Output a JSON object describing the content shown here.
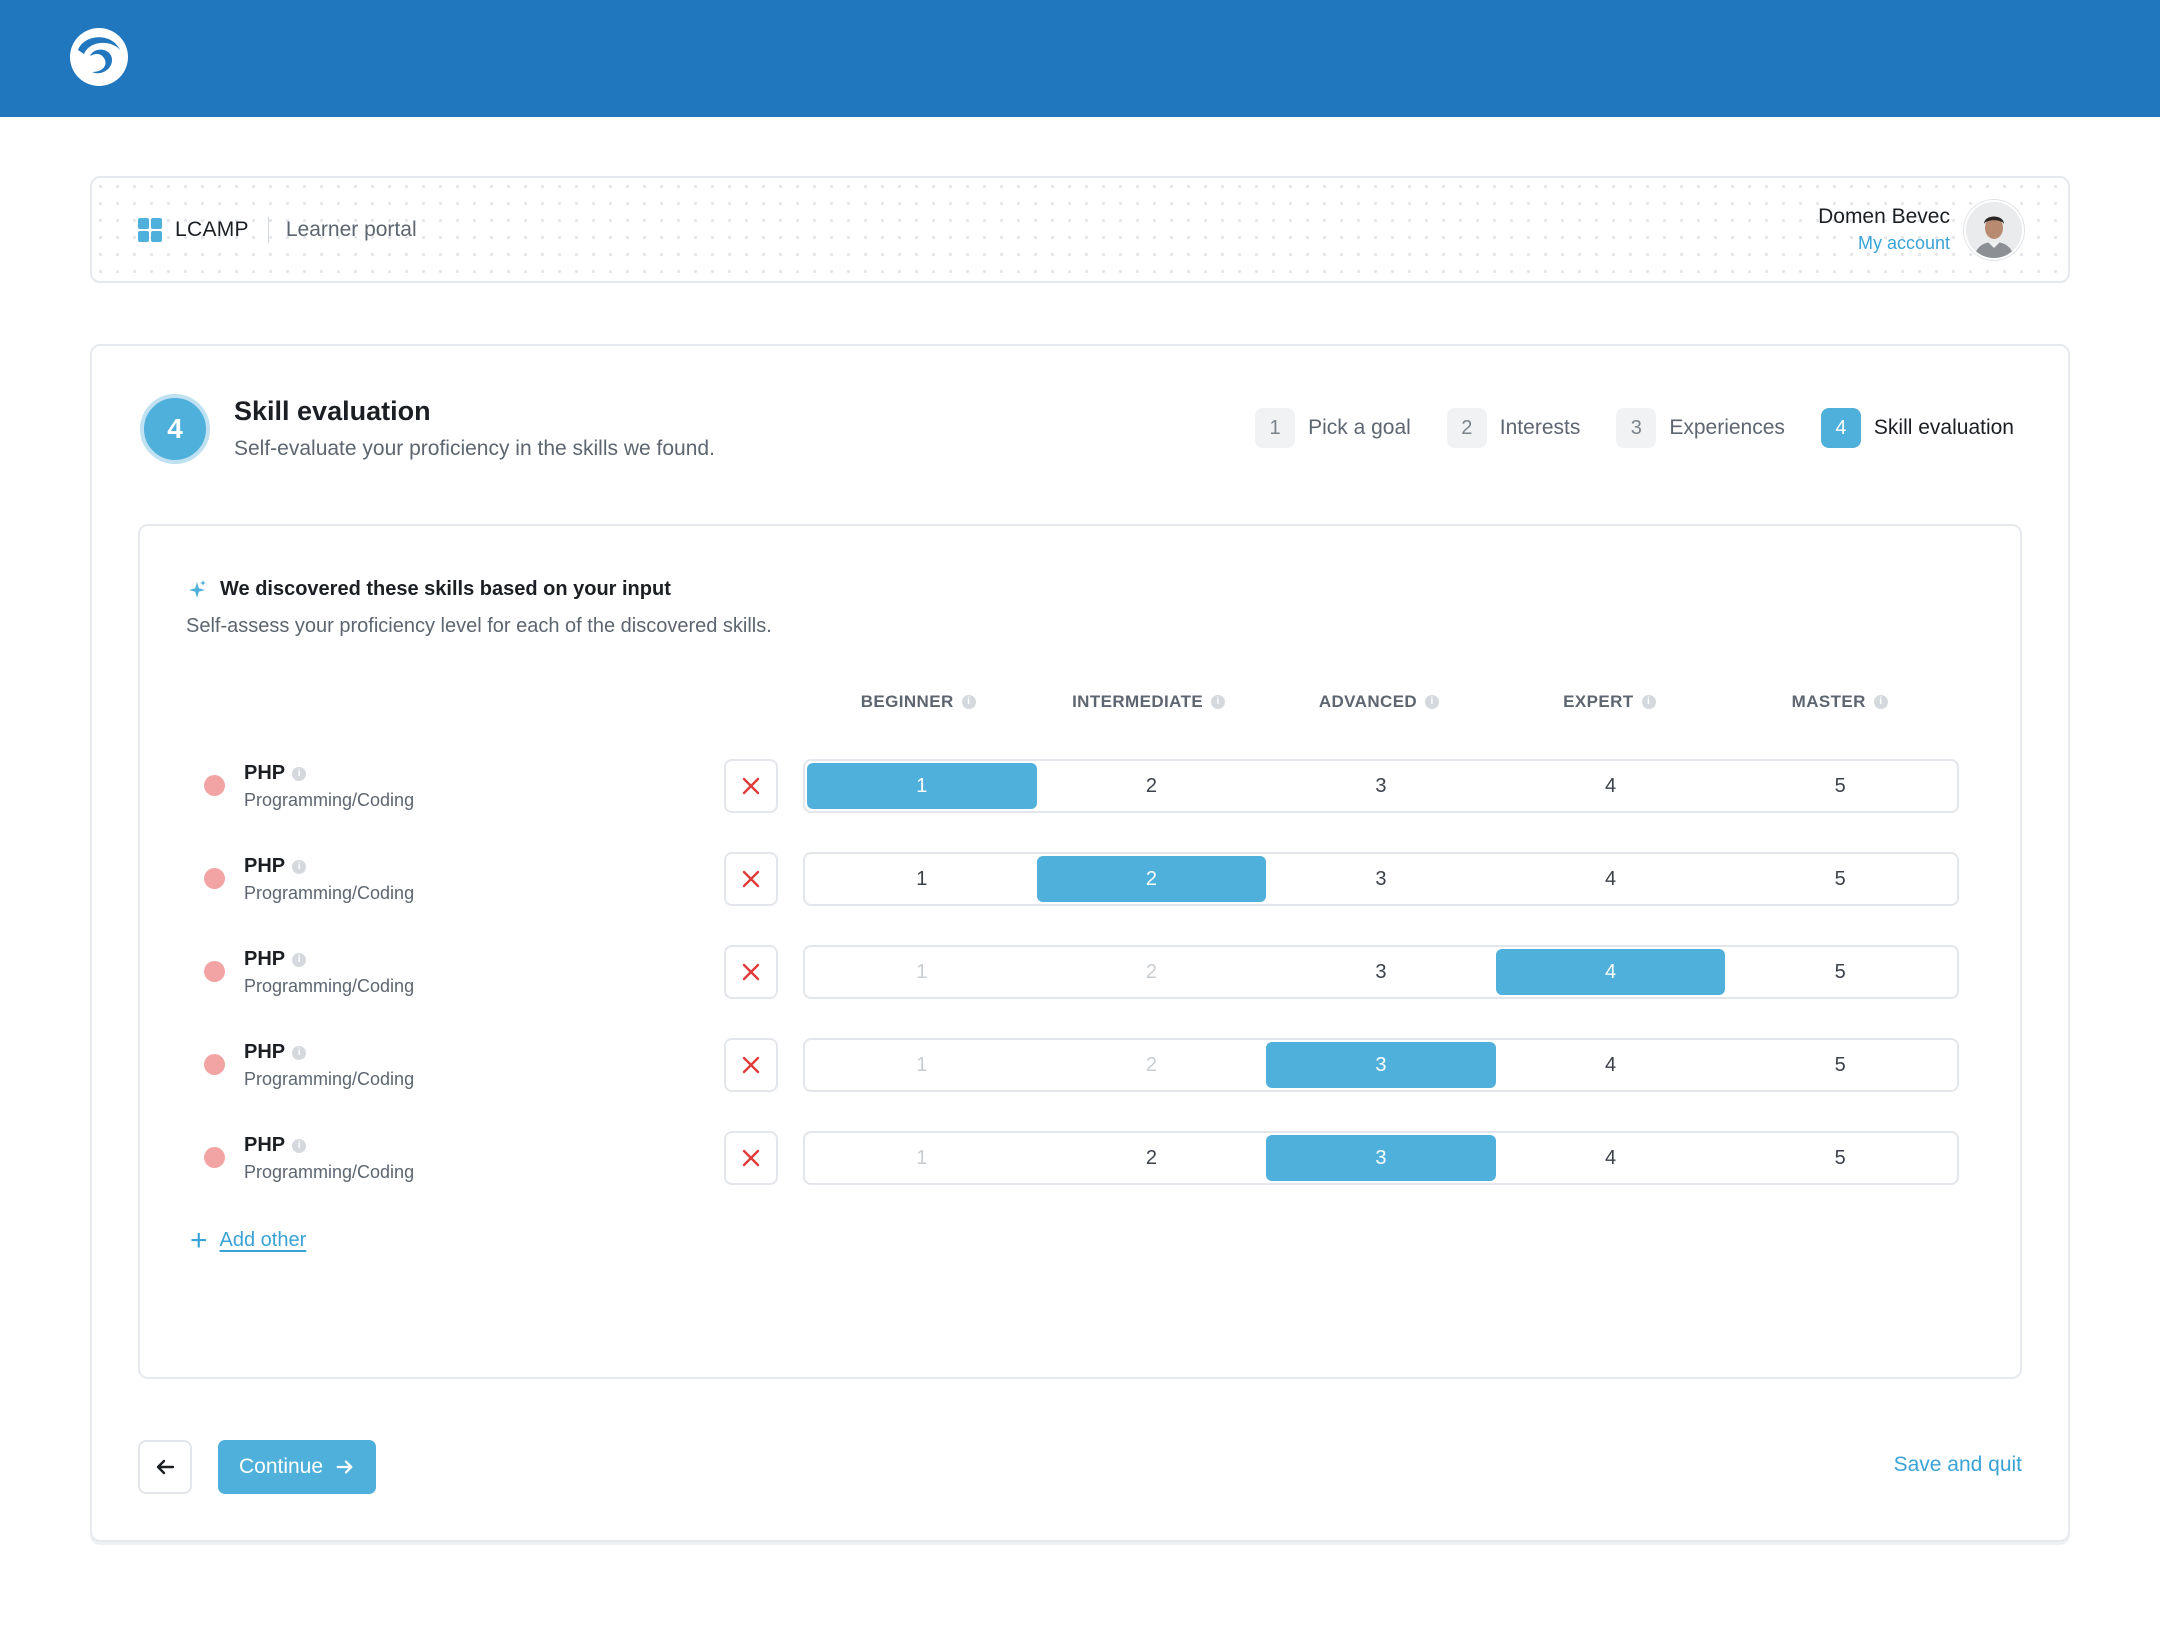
{
  "header": {
    "brand": "LCAMP",
    "portal": "Learner portal",
    "user_name": "Domen Bevec",
    "account_link": "My account"
  },
  "step": {
    "number": "4",
    "title": "Skill evaluation",
    "subtitle": "Self-evaluate your proficiency in the skills we found."
  },
  "stepper": [
    {
      "num": "1",
      "label": "Pick a goal",
      "active": false
    },
    {
      "num": "2",
      "label": "Interests",
      "active": false
    },
    {
      "num": "3",
      "label": "Experiences",
      "active": false
    },
    {
      "num": "4",
      "label": "Skill evaluation",
      "active": true
    }
  ],
  "discovery": {
    "title": "We discovered these skills based on your input",
    "subtitle": "Self-assess your proficiency level for each of the discovered skills."
  },
  "levels": [
    "BEGINNER",
    "INTERMEDIATE",
    "ADVANCED",
    "EXPERT",
    "MASTER"
  ],
  "skills": [
    {
      "name": "PHP",
      "category": "Programming/Coding",
      "selected": 1,
      "options": [
        {
          "v": "1",
          "dim": false
        },
        {
          "v": "2",
          "dim": false
        },
        {
          "v": "3",
          "dim": false
        },
        {
          "v": "4",
          "dim": false
        },
        {
          "v": "5",
          "dim": false
        }
      ]
    },
    {
      "name": "PHP",
      "category": "Programming/Coding",
      "selected": 2,
      "options": [
        {
          "v": "1",
          "dim": false
        },
        {
          "v": "2",
          "dim": false
        },
        {
          "v": "3",
          "dim": false
        },
        {
          "v": "4",
          "dim": false
        },
        {
          "v": "5",
          "dim": false
        }
      ]
    },
    {
      "name": "PHP",
      "category": "Programming/Coding",
      "selected": 4,
      "options": [
        {
          "v": "1",
          "dim": true
        },
        {
          "v": "2",
          "dim": true
        },
        {
          "v": "3",
          "dim": false
        },
        {
          "v": "4",
          "dim": false
        },
        {
          "v": "5",
          "dim": false
        }
      ]
    },
    {
      "name": "PHP",
      "category": "Programming/Coding",
      "selected": 3,
      "options": [
        {
          "v": "1",
          "dim": true
        },
        {
          "v": "2",
          "dim": true
        },
        {
          "v": "3",
          "dim": false
        },
        {
          "v": "4",
          "dim": false
        },
        {
          "v": "5",
          "dim": false
        }
      ]
    },
    {
      "name": "PHP",
      "category": "Programming/Coding",
      "selected": 3,
      "options": [
        {
          "v": "1",
          "dim": true
        },
        {
          "v": "2",
          "dim": false
        },
        {
          "v": "3",
          "dim": false
        },
        {
          "v": "4",
          "dim": false
        },
        {
          "v": "5",
          "dim": false
        }
      ]
    }
  ],
  "add_other": "Add other",
  "footer": {
    "continue": "Continue",
    "save_quit": "Save and quit"
  },
  "icons": {
    "logo": "swirl-logo-icon",
    "brand": "grid-icon",
    "sparkle": "sparkle-icon",
    "info": "info-icon",
    "remove": "close-icon",
    "add": "plus-icon",
    "back": "arrow-left-icon",
    "continue": "arrow-right-icon"
  },
  "colors": {
    "topbar": "#2077be",
    "accent": "#4fb0dc",
    "link": "#3aa3d6",
    "remove": "#e03b3b",
    "skill_dot": "#f2a3a3"
  }
}
